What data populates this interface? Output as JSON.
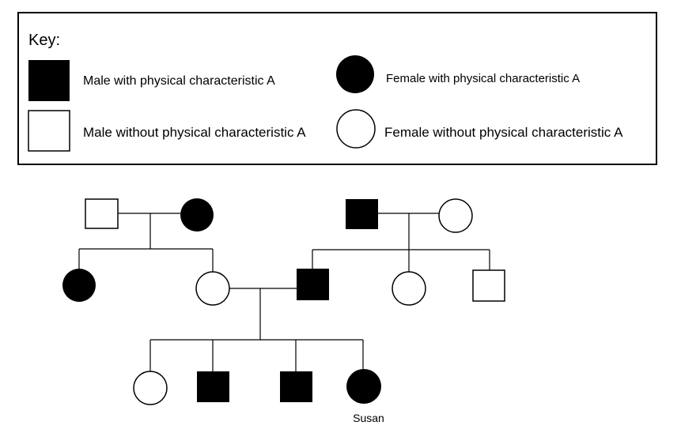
{
  "key": {
    "heading": "Key:",
    "entries": {
      "male_affected": "Male with physical characteristic A",
      "female_affected": "Female with  physical characteristic A",
      "male_unaffected": "Male without physical characteristic A",
      "female_unaffected": "Female without physical characteristic A"
    }
  },
  "pedigree": {
    "generation_1": [
      {
        "id": "p1",
        "sex": "male",
        "affected": false
      },
      {
        "id": "p2",
        "sex": "female",
        "affected": true
      },
      {
        "id": "p3",
        "sex": "male",
        "affected": true
      },
      {
        "id": "p4",
        "sex": "female",
        "affected": false
      }
    ],
    "generation_2": [
      {
        "id": "c1",
        "sex": "female",
        "affected": true,
        "parents": [
          "p1",
          "p2"
        ]
      },
      {
        "id": "c2",
        "sex": "female",
        "affected": false,
        "parents": [
          "p1",
          "p2"
        ]
      },
      {
        "id": "c3",
        "sex": "male",
        "affected": true,
        "parents": [
          "p3",
          "p4"
        ]
      },
      {
        "id": "c4",
        "sex": "female",
        "affected": false,
        "parents": [
          "p3",
          "p4"
        ]
      },
      {
        "id": "c5",
        "sex": "male",
        "affected": false,
        "parents": [
          "p3",
          "p4"
        ]
      }
    ],
    "generation_3": [
      {
        "id": "g1",
        "sex": "female",
        "affected": false,
        "parents": [
          "c2",
          "c3"
        ]
      },
      {
        "id": "g2",
        "sex": "male",
        "affected": true,
        "parents": [
          "c2",
          "c3"
        ]
      },
      {
        "id": "g3",
        "sex": "male",
        "affected": true,
        "parents": [
          "c2",
          "c3"
        ]
      },
      {
        "id": "g4",
        "sex": "female",
        "affected": true,
        "parents": [
          "c2",
          "c3"
        ],
        "label": "Susan"
      }
    ]
  }
}
